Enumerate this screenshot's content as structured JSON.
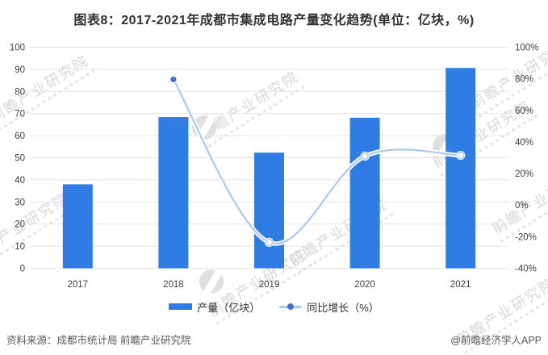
{
  "header": {
    "title": "图表8：2017-2021年成都市集成电路产量变化趋势(单位：亿块，%)"
  },
  "chart_data": {
    "type": "combo_bar_line",
    "title": "图表8：2017-2021年成都市集成电路产量变化趋势(单位：亿块，%)",
    "categories": [
      "2017",
      "2018",
      "2019",
      "2020",
      "2021"
    ],
    "series": [
      {
        "name": "产量（亿块）",
        "type": "bar",
        "axis": "left",
        "values": [
          38.0,
          68.4,
          52.3,
          68.1,
          90.6
        ]
      },
      {
        "name": "同比增长（%）",
        "type": "line",
        "axis": "right",
        "values": [
          null,
          79.6,
          -23.6,
          31.0,
          31.5
        ]
      }
    ],
    "left_axis": {
      "min": 0,
      "max": 100,
      "tick_labels": [
        "100",
        "90",
        "80",
        "70",
        "60",
        "50",
        "40",
        "30",
        "20",
        "10",
        "0"
      ]
    },
    "right_axis": {
      "min": -40,
      "max": 100,
      "tick_labels": [
        "100%",
        "80%",
        "60%",
        "40%",
        "20%",
        "0%",
        "-20%",
        "-40%"
      ]
    },
    "grid": true,
    "legend_position": "bottom"
  },
  "legend": {
    "items": [
      {
        "label": "产量（亿块）",
        "swatch": "bar"
      },
      {
        "label": "同比增长（%）",
        "swatch": "line-dot"
      }
    ]
  },
  "footer": {
    "source": "资料来源：成都市统计局 前瞻产业研究院",
    "credit": "@前瞻经济学人APP"
  },
  "watermark": {
    "text": "前瞻产业研究院"
  },
  "colors": {
    "bar": "#2e7ce4",
    "line": "#aec9ee",
    "marker": "#4273cc",
    "grid": "#e4e4e4",
    "axis_text": "#404040",
    "title_text": "#333333",
    "footer_text": "#595959",
    "watermark": "#d9d9d9"
  }
}
